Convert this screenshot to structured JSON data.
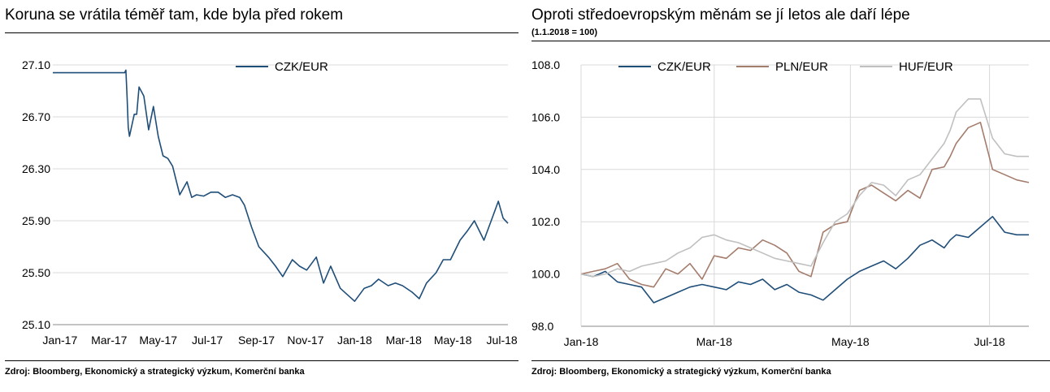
{
  "left": {
    "title": "Koruna se vrátila téměř tam, kde byla před rokem",
    "source": "Zdroj: Bloomberg, Ekonomický a strategický výzkum, Komerční banka"
  },
  "right": {
    "title": "Oproti středoevropským měnám se jí letos ale daří lépe",
    "subtitle": "(1.1.2018 = 100)",
    "source": "Zdroj: Bloomberg, Ekonomický a strategický výzkum, Komerční banka"
  },
  "chart_data": [
    {
      "type": "line",
      "title": "Koruna se vrátila téměř tam, kde byla před rokem",
      "ylim": [
        25.1,
        27.1
      ],
      "xlim": [
        0,
        19
      ],
      "yticks": [
        "27.10",
        "26.70",
        "26.30",
        "25.90",
        "25.50",
        "25.10"
      ],
      "xticks": [
        "Jan-17",
        "Mar-17",
        "May-17",
        "Jul-17",
        "Sep-17",
        "Nov-17",
        "Jan-18",
        "Mar-18",
        "May-18",
        "Jul-18"
      ],
      "grid": true,
      "legend": "top-center",
      "series": [
        {
          "name": "CZK/EUR",
          "color": "#1f4e79",
          "x": [
            0,
            1,
            2,
            3,
            3.05,
            3.1,
            3.15,
            3.2,
            3.4,
            3.5,
            3.6,
            3.8,
            4,
            4.2,
            4.4,
            4.6,
            4.8,
            5,
            5.3,
            5.6,
            5.8,
            6,
            6.3,
            6.6,
            6.9,
            7.2,
            7.5,
            7.8,
            8,
            8.3,
            8.6,
            9,
            9.3,
            9.6,
            10,
            10.3,
            10.6,
            11,
            11.3,
            11.6,
            12,
            12.3,
            12.6,
            13,
            13.3,
            13.6,
            14,
            14.3,
            14.6,
            15,
            15.3,
            15.6,
            16,
            16.3,
            16.6,
            17,
            17.3,
            17.6,
            18,
            18.3,
            18.6,
            18.8,
            19
          ],
          "values": [
            27.04,
            27.04,
            27.04,
            27.04,
            27.06,
            26.85,
            26.62,
            26.55,
            26.72,
            26.72,
            26.93,
            26.86,
            26.6,
            26.78,
            26.55,
            26.4,
            26.38,
            26.32,
            26.1,
            26.2,
            26.08,
            26.1,
            26.09,
            26.12,
            26.12,
            26.08,
            26.1,
            26.08,
            26.02,
            25.85,
            25.7,
            25.62,
            25.55,
            25.47,
            25.6,
            25.55,
            25.52,
            25.62,
            25.42,
            25.55,
            25.38,
            25.33,
            25.28,
            25.38,
            25.4,
            25.45,
            25.4,
            25.42,
            25.4,
            25.35,
            25.3,
            25.42,
            25.5,
            25.6,
            25.6,
            25.75,
            25.82,
            25.9,
            25.75,
            25.9,
            26.05,
            25.92,
            25.88
          ]
        }
      ]
    },
    {
      "type": "line",
      "title": "Oproti středoevropským měnám se jí letos ale daří lépe",
      "subtitle": "(1.1.2018 = 100)",
      "ylim": [
        98.0,
        108.0
      ],
      "xlim": [
        0,
        7.4
      ],
      "yticks": [
        "108.0",
        "106.0",
        "104.0",
        "102.0",
        "100.0",
        "98.0"
      ],
      "xticks": [
        "Jan-18",
        "Mar-18",
        "May-18",
        "Jul-18"
      ],
      "grid": true,
      "legend": "top-center",
      "series": [
        {
          "name": "CZK/EUR",
          "color": "#1f4e79",
          "x": [
            0,
            0.2,
            0.4,
            0.6,
            0.8,
            1,
            1.2,
            1.4,
            1.6,
            1.8,
            2,
            2.2,
            2.4,
            2.6,
            2.8,
            3,
            3.2,
            3.4,
            3.6,
            3.8,
            4,
            4.2,
            4.4,
            4.6,
            4.8,
            5,
            5.2,
            5.4,
            5.6,
            5.8,
            6,
            6.1,
            6.2,
            6.4,
            6.6,
            6.8,
            7,
            7.2,
            7.4
          ],
          "values": [
            100,
            99.9,
            100.1,
            99.7,
            99.6,
            99.5,
            98.9,
            99.1,
            99.3,
            99.5,
            99.6,
            99.5,
            99.4,
            99.7,
            99.6,
            99.8,
            99.4,
            99.6,
            99.3,
            99.2,
            99.0,
            99.4,
            99.8,
            100.1,
            100.3,
            100.5,
            100.2,
            100.6,
            101.1,
            101.3,
            101.0,
            101.3,
            101.5,
            101.4,
            101.8,
            102.2,
            101.6,
            101.5,
            101.5
          ]
        },
        {
          "name": "PLN/EUR",
          "color": "#a47c6c",
          "x": [
            0,
            0.2,
            0.4,
            0.6,
            0.8,
            1,
            1.2,
            1.4,
            1.6,
            1.8,
            2,
            2.2,
            2.4,
            2.6,
            2.8,
            3,
            3.2,
            3.4,
            3.6,
            3.8,
            4,
            4.2,
            4.4,
            4.6,
            4.8,
            5,
            5.2,
            5.4,
            5.6,
            5.8,
            6,
            6.1,
            6.2,
            6.4,
            6.6,
            6.8,
            7,
            7.2,
            7.4
          ],
          "values": [
            100,
            100.1,
            100.2,
            100.4,
            99.8,
            99.6,
            99.5,
            100.2,
            100.0,
            100.4,
            99.8,
            100.7,
            100.6,
            101.0,
            100.9,
            101.3,
            101.1,
            100.8,
            100.1,
            99.9,
            101.6,
            101.9,
            102.0,
            103.2,
            103.4,
            103.1,
            102.8,
            103.2,
            102.9,
            104.0,
            104.1,
            104.5,
            105.0,
            105.6,
            105.8,
            104.0,
            103.8,
            103.6,
            103.5
          ]
        },
        {
          "name": "HUF/EUR",
          "color": "#c0c0c0",
          "x": [
            0,
            0.2,
            0.4,
            0.6,
            0.8,
            1,
            1.2,
            1.4,
            1.6,
            1.8,
            2,
            2.2,
            2.4,
            2.6,
            2.8,
            3,
            3.2,
            3.4,
            3.6,
            3.8,
            4,
            4.2,
            4.4,
            4.6,
            4.8,
            5,
            5.2,
            5.4,
            5.6,
            5.8,
            6,
            6.1,
            6.2,
            6.4,
            6.6,
            6.8,
            7,
            7.2,
            7.4
          ],
          "values": [
            100,
            99.9,
            100.0,
            100.2,
            100.1,
            100.3,
            100.4,
            100.5,
            100.8,
            101.0,
            101.4,
            101.5,
            101.3,
            101.2,
            101.0,
            100.8,
            100.6,
            100.5,
            100.4,
            100.3,
            101.2,
            102.0,
            102.3,
            103.0,
            103.5,
            103.4,
            103.0,
            103.6,
            103.8,
            104.4,
            105.0,
            105.5,
            106.2,
            106.7,
            106.7,
            105.2,
            104.6,
            104.5,
            104.5
          ]
        }
      ]
    }
  ]
}
